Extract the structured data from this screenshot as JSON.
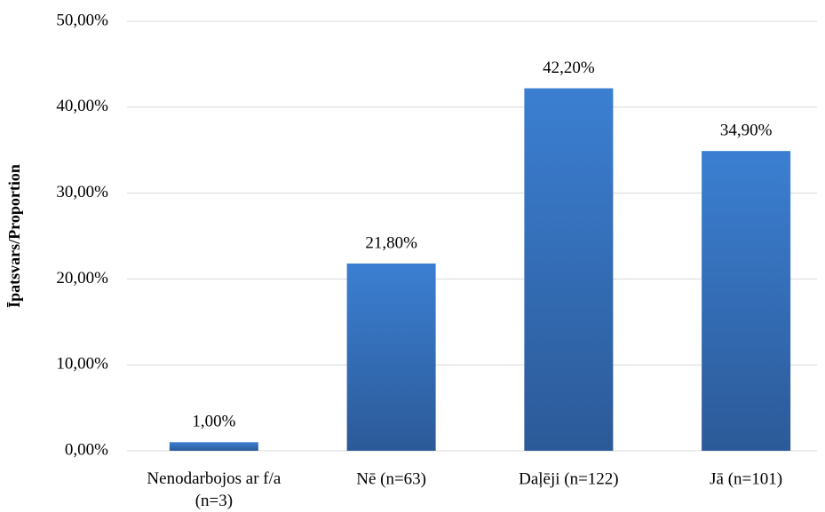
{
  "chart_data": {
    "type": "bar",
    "y_axis_label": "Īpatsvars/Proportion",
    "categories": [
      "Nenodarbojos ar f/a (n=3)",
      "Nē (n=63)",
      "Daļēji (n=122)",
      "Jā (n=101)"
    ],
    "values": [
      1.0,
      21.8,
      42.2,
      34.9
    ],
    "value_labels": [
      "1,00%",
      "21,80%",
      "42,20%",
      "34,90%"
    ],
    "color": "#3b7fd2",
    "ylim": [
      0,
      50
    ],
    "yticks": [
      {
        "value": 0,
        "label": "0,00%"
      },
      {
        "value": 10,
        "label": "10,00%"
      },
      {
        "value": 20,
        "label": "20,00%"
      },
      {
        "value": 30,
        "label": "30,00%"
      },
      {
        "value": 40,
        "label": "40,00%"
      },
      {
        "value": 50,
        "label": "50,00%"
      }
    ],
    "grid": true
  }
}
